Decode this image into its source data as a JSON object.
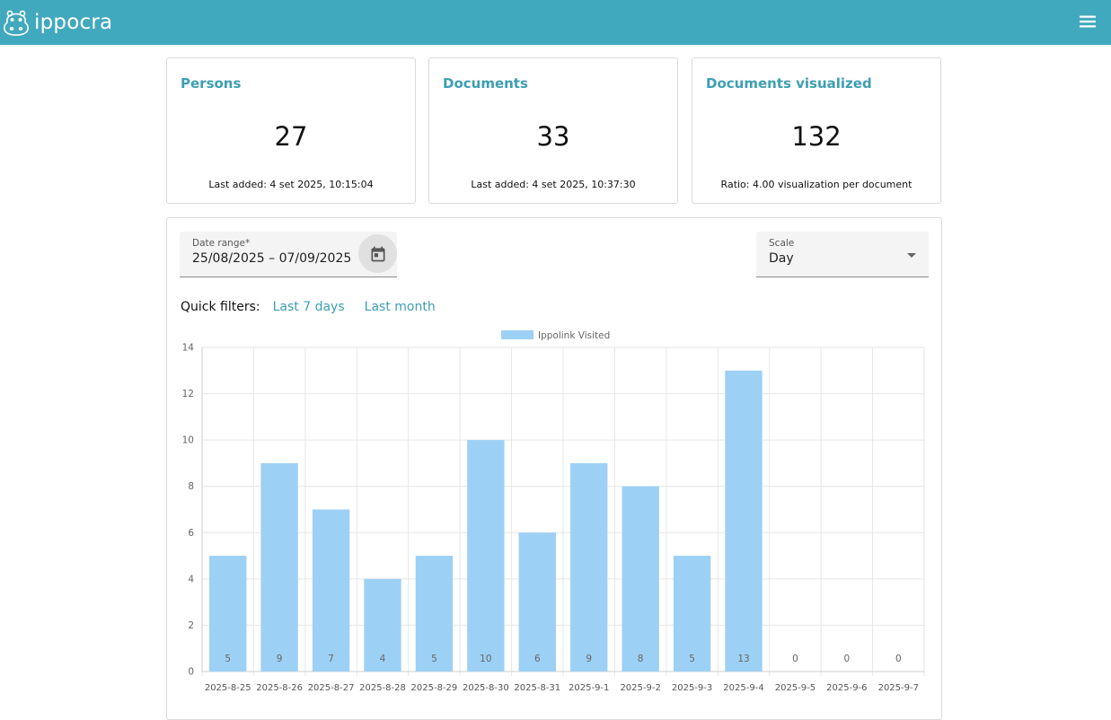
{
  "app": {
    "name": "ippocra",
    "logo_icon": "hippo-logo-icon",
    "menu_icon": "hamburger-menu-icon"
  },
  "stats": [
    {
      "title": "Persons",
      "value": "27",
      "footer": "Last added: 4 set 2025, 10:15:04"
    },
    {
      "title": "Documents",
      "value": "33",
      "footer": "Last added: 4 set 2025, 10:37:30"
    },
    {
      "title": "Documents visualized",
      "value": "132",
      "footer": "Ratio: 4.00 visualization per document"
    }
  ],
  "filters": {
    "date_range": {
      "label": "Date range*",
      "value": "25/08/2025 – 07/09/2025",
      "icon": "calendar-icon"
    },
    "scale": {
      "label": "Scale",
      "value": "Day"
    },
    "quick_label": "Quick filters:",
    "quick_links": [
      "Last 7 days",
      "Last month"
    ]
  },
  "colors": {
    "brand": "#41a9bd",
    "accent": "#3d9fb2",
    "bar": "#9dd0f5"
  },
  "chart_data": {
    "type": "bar",
    "legend": "Ippolink Visited",
    "legend_position": "top-center",
    "categories": [
      "2025-8-25",
      "2025-8-26",
      "2025-8-27",
      "2025-8-28",
      "2025-8-29",
      "2025-8-30",
      "2025-8-31",
      "2025-9-1",
      "2025-9-2",
      "2025-9-3",
      "2025-9-4",
      "2025-9-5",
      "2025-9-6",
      "2025-9-7"
    ],
    "series": [
      {
        "name": "Ippolink Visited",
        "values": [
          5,
          9,
          7,
          4,
          5,
          10,
          6,
          9,
          8,
          5,
          13,
          0,
          0,
          0
        ]
      }
    ],
    "yticks": [
      0,
      2,
      4,
      6,
      8,
      10,
      12,
      14
    ],
    "ylim": [
      0,
      14
    ],
    "grid": true
  }
}
